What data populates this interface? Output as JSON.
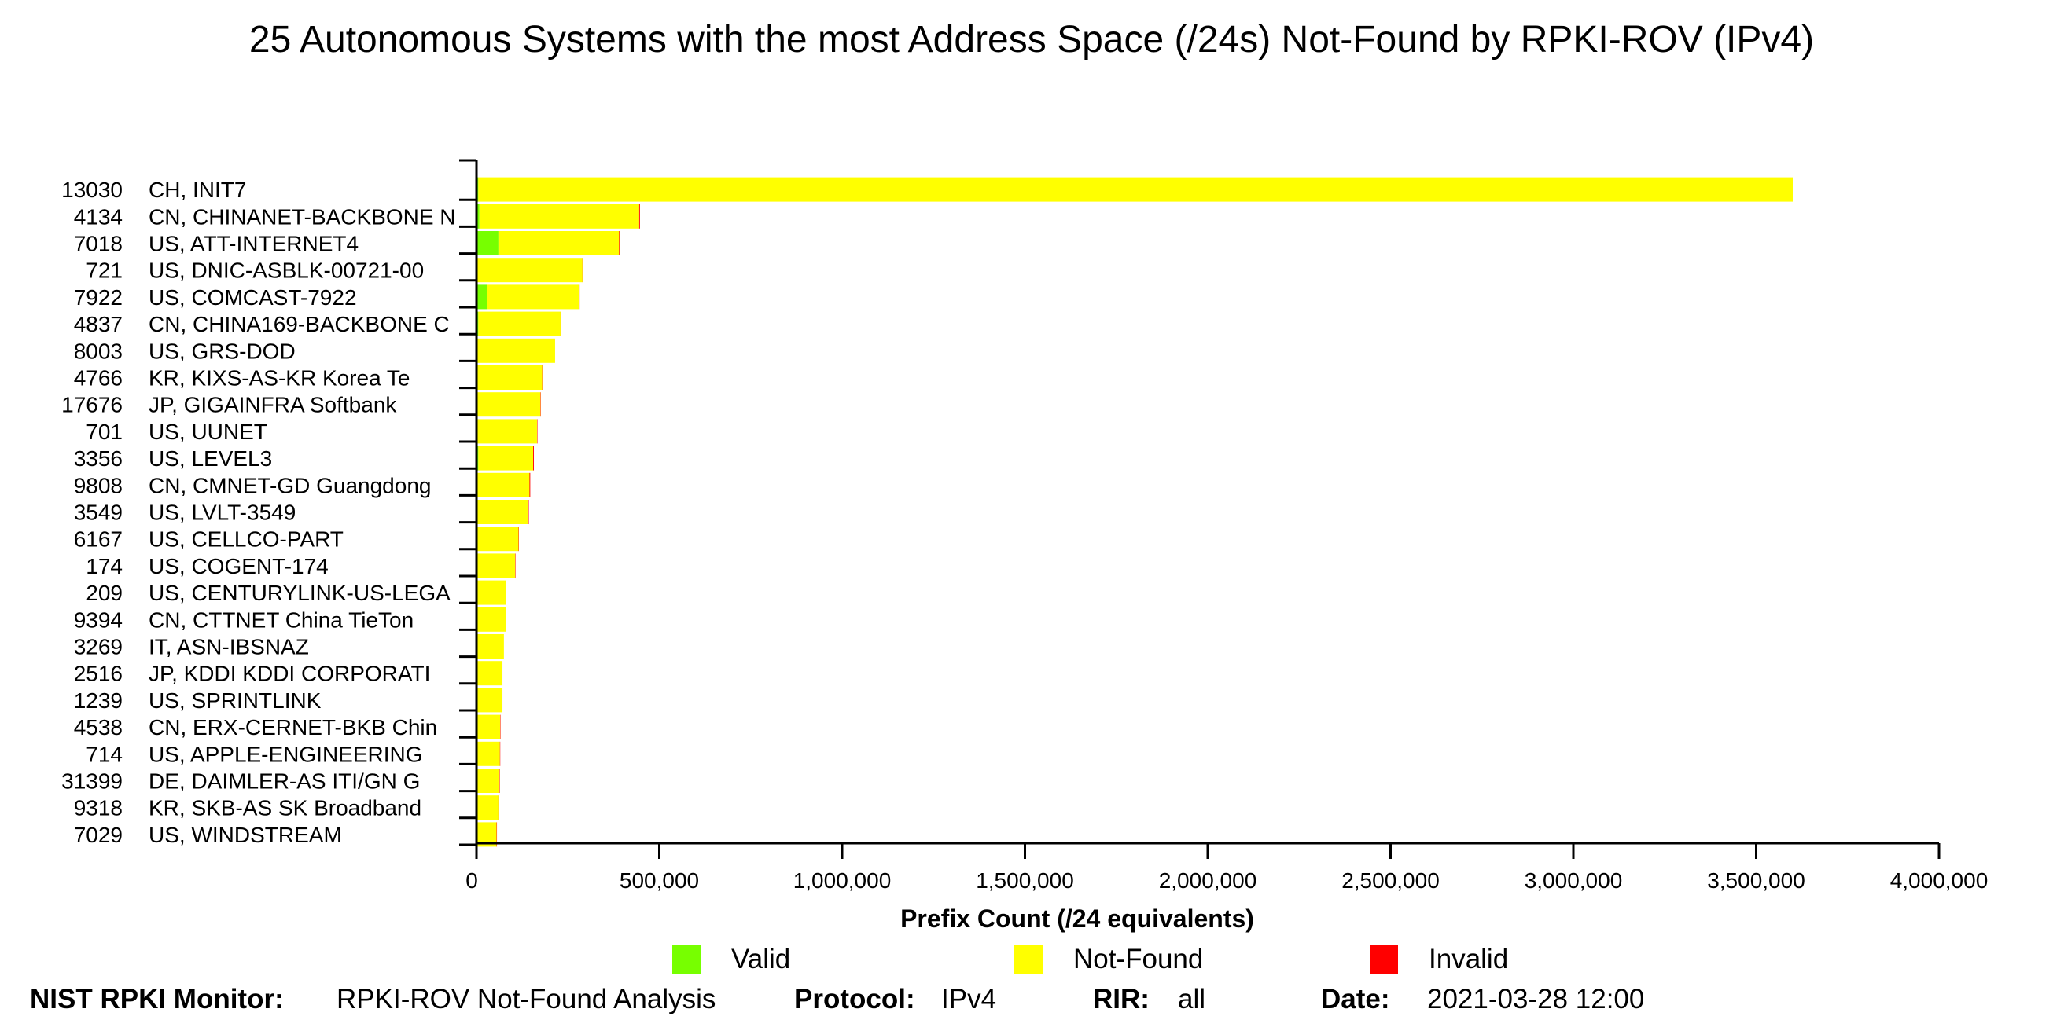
{
  "chart_data": {
    "type": "bar",
    "orientation": "horizontal",
    "stacked": true,
    "title": "25 Autonomous Systems with the most Address Space (/24s) Not-Found by RPKI-ROV (IPv4)",
    "xlabel": "Prefix Count (/24 equivalents)",
    "xlim": [
      0,
      4000000
    ],
    "xticks": [
      "0",
      "500,000",
      "1,000,000",
      "1,500,000",
      "2,000,000",
      "2,500,000",
      "3,000,000",
      "3,500,000",
      "4,000,000"
    ],
    "categories": [
      {
        "asn": "13030",
        "name": "CH, INIT7"
      },
      {
        "asn": "4134",
        "name": "CN, CHINANET-BACKBONE N"
      },
      {
        "asn": "7018",
        "name": "US, ATT-INTERNET4"
      },
      {
        "asn": "721",
        "name": "US, DNIC-ASBLK-00721-00"
      },
      {
        "asn": "7922",
        "name": "US, COMCAST-7922"
      },
      {
        "asn": "4837",
        "name": "CN, CHINA169-BACKBONE C"
      },
      {
        "asn": "8003",
        "name": "US, GRS-DOD"
      },
      {
        "asn": "4766",
        "name": "KR, KIXS-AS-KR Korea Te"
      },
      {
        "asn": "17676",
        "name": "JP, GIGAINFRA Softbank"
      },
      {
        "asn": "701",
        "name": "US, UUNET"
      },
      {
        "asn": "3356",
        "name": "US, LEVEL3"
      },
      {
        "asn": "9808",
        "name": "CN, CMNET-GD Guangdong"
      },
      {
        "asn": "3549",
        "name": "US, LVLT-3549"
      },
      {
        "asn": "6167",
        "name": "US, CELLCO-PART"
      },
      {
        "asn": "174",
        "name": "US, COGENT-174"
      },
      {
        "asn": "209",
        "name": "US, CENTURYLINK-US-LEGA"
      },
      {
        "asn": "9394",
        "name": "CN, CTTNET China TieTon"
      },
      {
        "asn": "3269",
        "name": "IT, ASN-IBSNAZ"
      },
      {
        "asn": "2516",
        "name": "JP, KDDI KDDI CORPORATI"
      },
      {
        "asn": "1239",
        "name": "US, SPRINTLINK"
      },
      {
        "asn": "4538",
        "name": "CN, ERX-CERNET-BKB Chin"
      },
      {
        "asn": "714",
        "name": "US, APPLE-ENGINEERING"
      },
      {
        "asn": "31399",
        "name": "DE, DAIMLER-AS ITI/GN G"
      },
      {
        "asn": "9318",
        "name": "KR, SKB-AS SK Broadband"
      },
      {
        "asn": "7029",
        "name": "US, WINDSTREAM"
      }
    ],
    "series": [
      {
        "name": "Valid",
        "color": "#77ff00",
        "values": [
          5000,
          8000,
          60000,
          2000,
          30000,
          5000,
          0,
          3000,
          2000,
          3000,
          5000,
          2000,
          3000,
          3000,
          2000,
          2000,
          1000,
          1000,
          1000,
          2000,
          1000,
          1000,
          1000,
          1000,
          1000
        ]
      },
      {
        "name": "Not-Found",
        "color": "#ffff00",
        "values": [
          3595000,
          437000,
          330000,
          288000,
          250000,
          225000,
          215000,
          177000,
          173000,
          163000,
          150000,
          143000,
          137000,
          112000,
          104000,
          78000,
          79000,
          74000,
          69000,
          68000,
          64000,
          63000,
          62000,
          59000,
          54000
        ]
      },
      {
        "name": "Invalid",
        "color": "#ff0000",
        "values": [
          0,
          2000,
          3000,
          1000,
          2000,
          1000,
          0,
          1000,
          1000,
          1000,
          2000,
          2000,
          3000,
          1000,
          1000,
          1000,
          1000,
          0,
          1000,
          1000,
          1000,
          1000,
          1000,
          1000,
          1000
        ]
      }
    ],
    "legend": {
      "placement": "bottom",
      "items": [
        "Valid",
        "Not-Found",
        "Invalid"
      ]
    }
  },
  "footer": {
    "monitor_label": "NIST RPKI Monitor:",
    "monitor_value": "RPKI-ROV Not-Found Analysis",
    "protocol_label": "Protocol:",
    "protocol_value": "IPv4",
    "rir_label": "RIR:",
    "rir_value": "all",
    "date_label": "Date:",
    "date_value": "2021-03-28 12:00"
  }
}
